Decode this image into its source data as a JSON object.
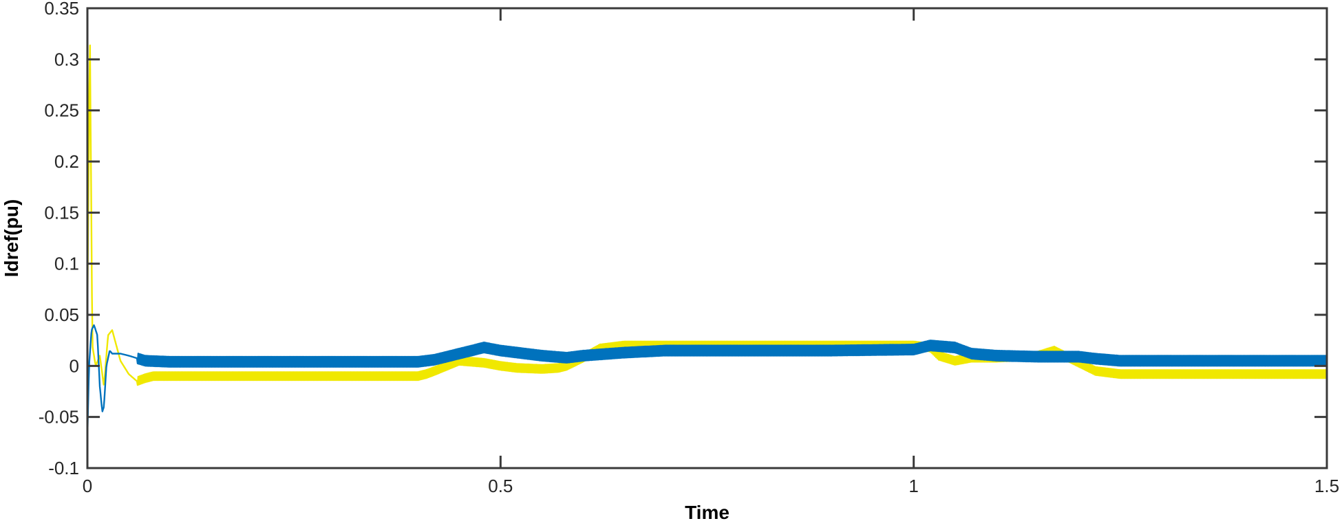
{
  "chart_data": {
    "type": "line",
    "title": "",
    "xlabel": "Time",
    "ylabel": "Idref(pu)",
    "xlim": [
      0,
      1.5
    ],
    "ylim": [
      -0.1,
      0.35
    ],
    "xticks": [
      0,
      0.5,
      1,
      1.5
    ],
    "xtick_labels": [
      "0",
      "0.5",
      "1",
      "1.5"
    ],
    "yticks": [
      -0.1,
      -0.05,
      0,
      0.05,
      0.1,
      0.15,
      0.2,
      0.25,
      0.3,
      0.35
    ],
    "ytick_labels": [
      "-0.1",
      "-0.05",
      "0",
      "0.05",
      "0.1",
      "0.15",
      "0.2",
      "0.25",
      "0.3",
      "0.35"
    ],
    "grid": false,
    "box": true,
    "series": [
      {
        "color": "#f0e800",
        "ripple": 0.004,
        "x": [
          0,
          0.003,
          0.006,
          0.01,
          0.015,
          0.02,
          0.025,
          0.03,
          0.035,
          0.04,
          0.05,
          0.06,
          0.07,
          0.08,
          0.1,
          0.2,
          0.3,
          0.4,
          0.41,
          0.42,
          0.45,
          0.48,
          0.5,
          0.52,
          0.55,
          0.57,
          0.58,
          0.6,
          0.62,
          0.65,
          0.7,
          0.8,
          0.9,
          1.0,
          1.02,
          1.03,
          1.05,
          1.07,
          1.1,
          1.15,
          1.17,
          1.2,
          1.22,
          1.25,
          1.3,
          1.4,
          1.5
        ],
        "y": [
          0.05,
          0.33,
          0.02,
          0.0,
          0.01,
          -0.02,
          0.03,
          0.035,
          0.02,
          0.005,
          -0.008,
          -0.015,
          -0.012,
          -0.01,
          -0.01,
          -0.01,
          -0.01,
          -0.01,
          -0.008,
          -0.005,
          0.005,
          0.003,
          0.0,
          -0.002,
          -0.003,
          -0.002,
          0.0,
          0.008,
          0.017,
          0.02,
          0.02,
          0.02,
          0.02,
          0.02,
          0.018,
          0.01,
          0.005,
          0.008,
          0.008,
          0.01,
          0.015,
          0.003,
          -0.005,
          -0.008,
          -0.008,
          -0.008,
          -0.008
        ]
      },
      {
        "color": "#0072bd",
        "ripple": 0.005,
        "x": [
          0,
          0.002,
          0.005,
          0.008,
          0.012,
          0.015,
          0.018,
          0.02,
          0.023,
          0.027,
          0.03,
          0.035,
          0.04,
          0.05,
          0.07,
          0.1,
          0.2,
          0.3,
          0.4,
          0.42,
          0.45,
          0.48,
          0.5,
          0.55,
          0.58,
          0.6,
          0.65,
          0.7,
          0.8,
          0.9,
          1.0,
          1.02,
          1.05,
          1.07,
          1.1,
          1.15,
          1.2,
          1.22,
          1.25,
          1.3,
          1.4,
          1.5
        ],
        "y": [
          -0.07,
          0.0,
          0.035,
          0.04,
          0.03,
          -0.02,
          -0.045,
          -0.04,
          0.0,
          0.015,
          0.012,
          0.012,
          0.012,
          0.01,
          0.005,
          0.004,
          0.004,
          0.004,
          0.004,
          0.006,
          0.012,
          0.018,
          0.015,
          0.01,
          0.008,
          0.01,
          0.013,
          0.015,
          0.015,
          0.015,
          0.016,
          0.02,
          0.018,
          0.012,
          0.01,
          0.009,
          0.009,
          0.007,
          0.005,
          0.005,
          0.005,
          0.005
        ]
      }
    ]
  }
}
